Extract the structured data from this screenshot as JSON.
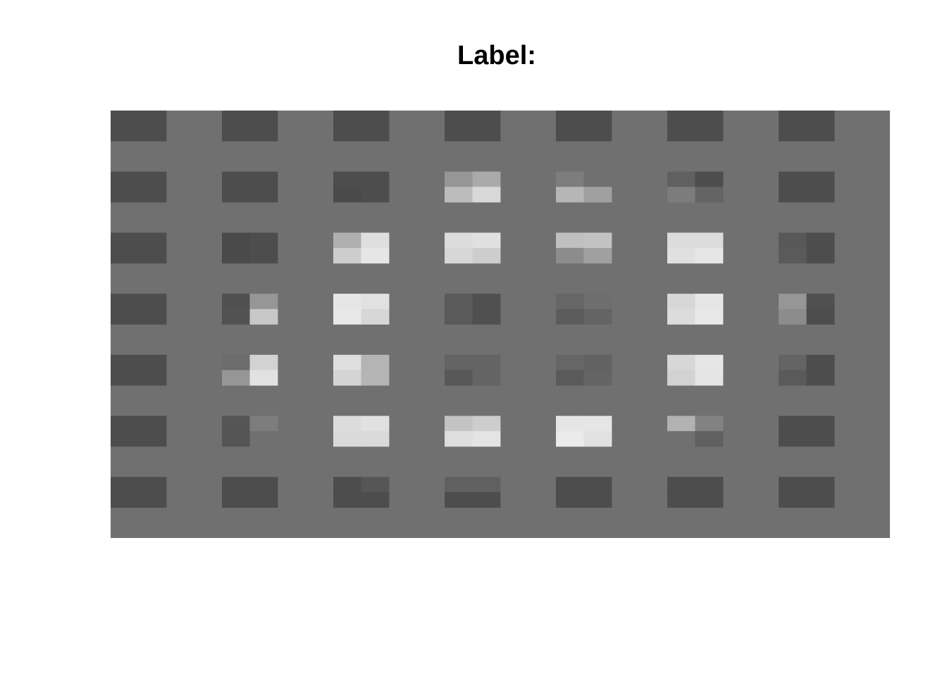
{
  "chart_data": {
    "type": "heatmap",
    "title": "Label:",
    "xlabel": "",
    "ylabel": "",
    "grid": false,
    "colormap": "gray",
    "background_color": "#707070",
    "value_range": [
      0,
      255
    ],
    "block_rows": 7,
    "block_cols": 7,
    "cells_per_block": [
      2,
      2
    ],
    "blocks": [
      [
        [
          [
            77,
            77
          ],
          [
            77,
            77
          ]
        ],
        [
          [
            77,
            77
          ],
          [
            77,
            77
          ]
        ],
        [
          [
            77,
            77
          ],
          [
            77,
            77
          ]
        ],
        [
          [
            77,
            77
          ],
          [
            77,
            77
          ]
        ],
        [
          [
            77,
            77
          ],
          [
            77,
            77
          ]
        ],
        [
          [
            77,
            77
          ],
          [
            77,
            77
          ]
        ],
        [
          [
            77,
            77
          ],
          [
            77,
            77
          ]
        ]
      ],
      [
        [
          [
            77,
            77
          ],
          [
            77,
            77
          ]
        ],
        [
          [
            77,
            77
          ],
          [
            77,
            77
          ]
        ],
        [
          [
            77,
            77
          ],
          [
            74,
            77
          ]
        ],
        [
          [
            150,
            170
          ],
          [
            188,
            216
          ]
        ],
        [
          [
            125,
            112
          ],
          [
            182,
            160
          ]
        ],
        [
          [
            96,
            77
          ],
          [
            124,
            100
          ]
        ],
        [
          [
            77,
            77
          ],
          [
            77,
            77
          ]
        ]
      ],
      [
        [
          [
            77,
            77
          ],
          [
            77,
            77
          ]
        ],
        [
          [
            74,
            77
          ],
          [
            74,
            77
          ]
        ],
        [
          [
            176,
            223
          ],
          [
            205,
            230
          ]
        ],
        [
          [
            220,
            225
          ],
          [
            215,
            205
          ]
        ],
        [
          [
            192,
            195
          ],
          [
            140,
            160
          ]
        ],
        [
          [
            220,
            220
          ],
          [
            224,
            230
          ]
        ],
        [
          [
            88,
            77
          ],
          [
            90,
            77
          ]
        ]
      ],
      [
        [
          [
            77,
            77
          ],
          [
            77,
            77
          ]
        ],
        [
          [
            80,
            150
          ],
          [
            82,
            200
          ]
        ],
        [
          [
            230,
            225
          ],
          [
            232,
            215
          ]
        ],
        [
          [
            90,
            80
          ],
          [
            90,
            80
          ]
        ],
        [
          [
            102,
            110
          ],
          [
            92,
            100
          ]
        ],
        [
          [
            215,
            230
          ],
          [
            220,
            232
          ]
        ],
        [
          [
            150,
            80
          ],
          [
            140,
            77
          ]
        ]
      ],
      [
        [
          [
            77,
            77
          ],
          [
            77,
            77
          ]
        ],
        [
          [
            108,
            210
          ],
          [
            150,
            225
          ]
        ],
        [
          [
            222,
            180
          ],
          [
            212,
            180
          ]
        ],
        [
          [
            100,
            100
          ],
          [
            88,
            100
          ]
        ],
        [
          [
            102,
            98
          ],
          [
            90,
            100
          ]
        ],
        [
          [
            215,
            230
          ],
          [
            210,
            228
          ]
        ],
        [
          [
            100,
            77
          ],
          [
            90,
            77
          ]
        ]
      ],
      [
        [
          [
            77,
            77
          ],
          [
            77,
            77
          ]
        ],
        [
          [
            85,
            125
          ],
          [
            85,
            112
          ]
        ],
        [
          [
            220,
            225
          ],
          [
            218,
            218
          ]
        ],
        [
          [
            195,
            205
          ],
          [
            222,
            228
          ]
        ],
        [
          [
            230,
            230
          ],
          [
            235,
            225
          ]
        ],
        [
          [
            178,
            130
          ],
          [
            112,
            96
          ]
        ],
        [
          [
            77,
            77
          ],
          [
            77,
            77
          ]
        ]
      ],
      [
        [
          [
            77,
            77
          ],
          [
            77,
            77
          ]
        ],
        [
          [
            77,
            77
          ],
          [
            77,
            77
          ]
        ],
        [
          [
            77,
            86
          ],
          [
            77,
            77
          ]
        ],
        [
          [
            96,
            96
          ],
          [
            77,
            77
          ]
        ],
        [
          [
            77,
            77
          ],
          [
            77,
            77
          ]
        ],
        [
          [
            77,
            77
          ],
          [
            77,
            77
          ]
        ],
        [
          [
            77,
            77
          ],
          [
            77,
            77
          ]
        ]
      ]
    ]
  }
}
